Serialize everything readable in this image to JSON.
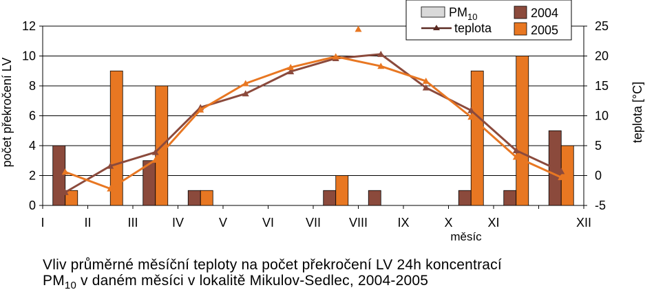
{
  "chart_data": {
    "type": "bar",
    "categories": [
      "I",
      "II",
      "III",
      "IV",
      "V",
      "VI",
      "VII",
      "VIII",
      "IX",
      "X",
      "XI",
      "XII"
    ],
    "xlabel": "měsíc",
    "ylabel": "počet překročení LV",
    "y2label": "teplota [°C]",
    "ylim": [
      0,
      12
    ],
    "y2lim": [
      -5,
      25
    ],
    "yticks": [
      "0",
      "2",
      "4",
      "6",
      "8",
      "10",
      "12"
    ],
    "y2ticks": [
      "-5",
      "0",
      "5",
      "10",
      "15",
      "20",
      "25"
    ],
    "bar_series": [
      {
        "name": "2004",
        "color": "#8B4A3C",
        "values": [
          4,
          0,
          3,
          1,
          0,
          0,
          1,
          1,
          0,
          1,
          1,
          5
        ]
      },
      {
        "name": "2005",
        "color": "#E87722",
        "values": [
          1,
          9,
          8,
          1,
          0,
          0,
          2,
          0,
          0,
          9,
          10,
          4
        ]
      }
    ],
    "line_series": [
      {
        "name": "2004",
        "color": "#8B4A3C",
        "values": [
          -2.8,
          1.6,
          3.9,
          11.4,
          13.7,
          17.4,
          19.6,
          20.3,
          14.7,
          10.9,
          4.2,
          0.7
        ]
      },
      {
        "name": "2005",
        "color": "#E87722",
        "values": [
          0.6,
          -2.2,
          2.6,
          11.0,
          15.4,
          18.1,
          19.9,
          18.3,
          15.8,
          9.8,
          3.1,
          -0.3
        ]
      }
    ],
    "outlier": {
      "series": "2005",
      "x_between": [
        "VII",
        "VIII"
      ],
      "value": 24.5,
      "color": "#E87722"
    },
    "legend": {
      "position": "top-right",
      "pm_label": "PM",
      "pm_sub": "10",
      "line_label": "teplota",
      "year1": "2004",
      "year2": "2005"
    },
    "grid": true
  },
  "caption": {
    "line1": "Vliv průměrné měsíční teploty na počet překročení LV 24h koncentrací",
    "line2_pre": "PM",
    "line2_sub": "10",
    "line2_post": " v daném měsíci v lokalitě Mikulov-Sedlec, 2004-2005"
  }
}
